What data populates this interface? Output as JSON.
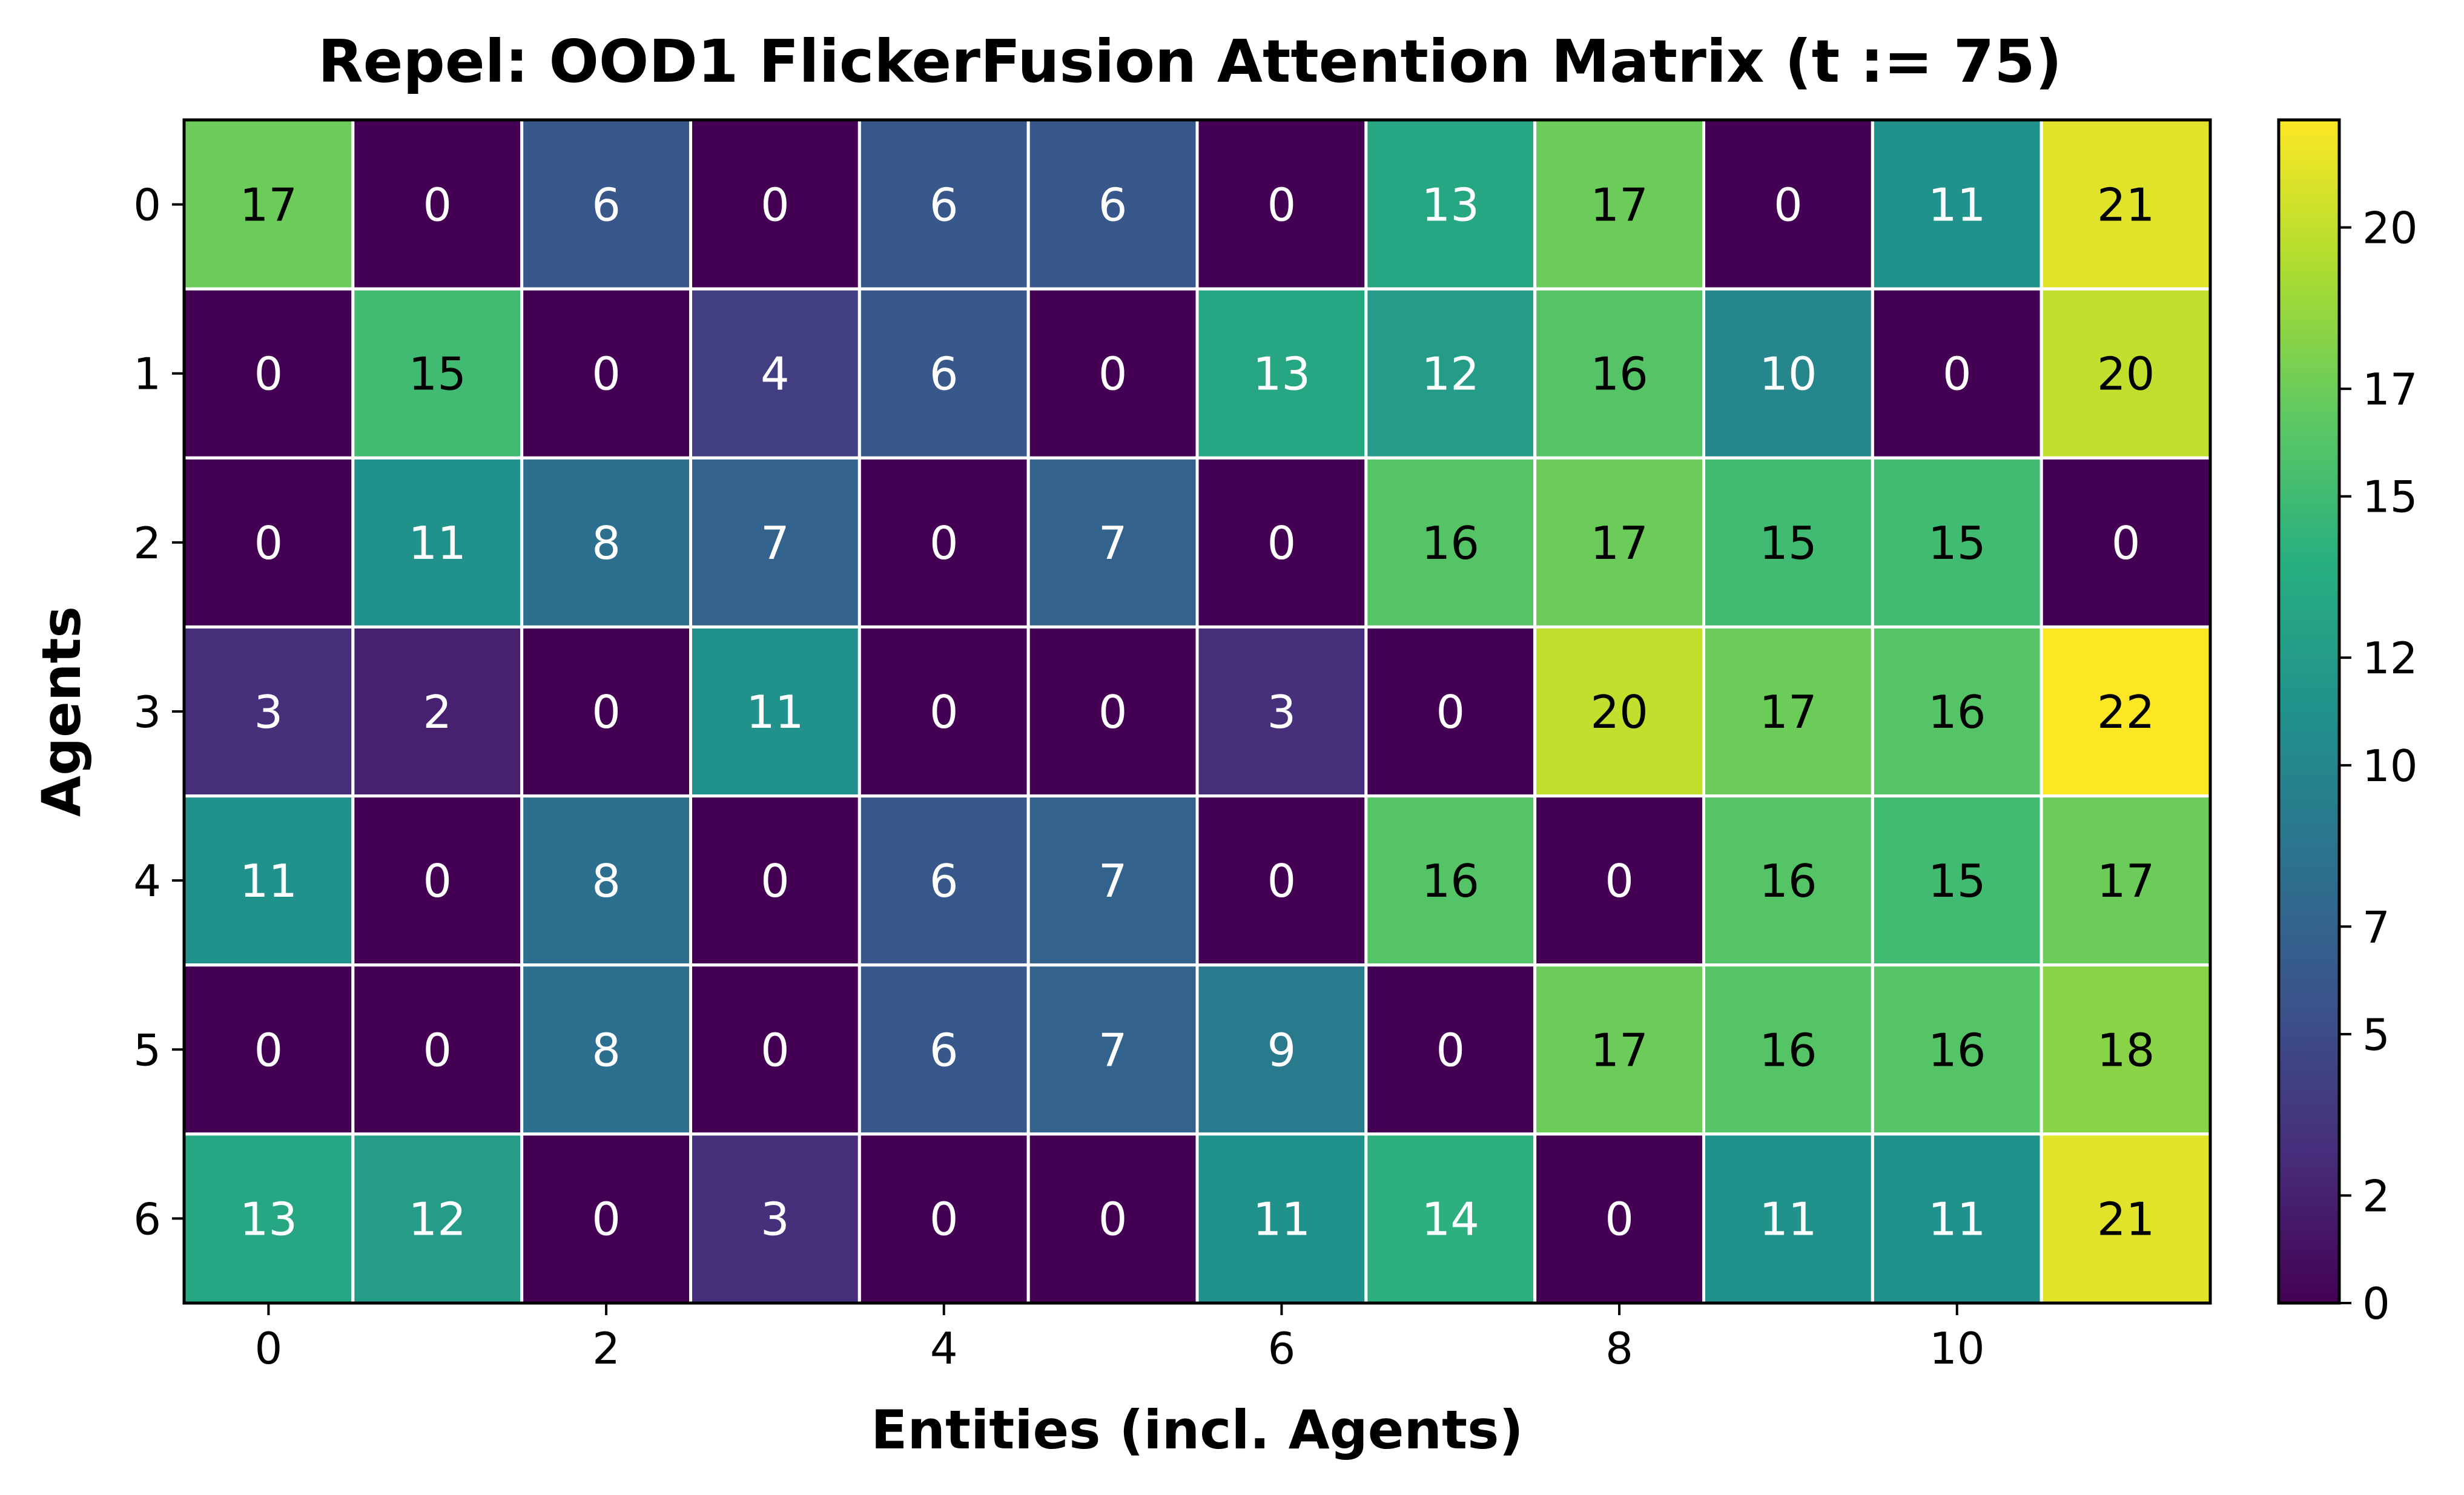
{
  "chart_data": {
    "type": "heatmap",
    "title": "Repel: OOD1 FlickerFusion Attention Matrix (t := 75)",
    "xlabel": "Entities (incl. Agents)",
    "ylabel": "Agents",
    "x_ticks": [
      "0",
      "2",
      "4",
      "6",
      "8",
      "10"
    ],
    "y_ticks": [
      "0",
      "1",
      "2",
      "3",
      "4",
      "5",
      "6"
    ],
    "colorbar_ticks": [
      "0",
      "2",
      "5",
      "7",
      "10",
      "12",
      "15",
      "17",
      "20"
    ],
    "colorbar_range": [
      0,
      22
    ],
    "colormap": "viridis",
    "values": [
      [
        17,
        0,
        6,
        0,
        6,
        6,
        0,
        13,
        17,
        0,
        11,
        21
      ],
      [
        0,
        15,
        0,
        4,
        6,
        0,
        13,
        12,
        16,
        10,
        0,
        20
      ],
      [
        0,
        11,
        8,
        7,
        0,
        7,
        0,
        16,
        17,
        15,
        15,
        0
      ],
      [
        3,
        2,
        0,
        11,
        0,
        0,
        3,
        0,
        20,
        17,
        16,
        22
      ],
      [
        11,
        0,
        8,
        0,
        6,
        7,
        0,
        16,
        0,
        16,
        15,
        17
      ],
      [
        0,
        0,
        8,
        0,
        6,
        7,
        9,
        0,
        17,
        16,
        16,
        18
      ],
      [
        13,
        12,
        0,
        3,
        0,
        0,
        11,
        14,
        0,
        11,
        11,
        21
      ]
    ],
    "grid": true,
    "legend": "colorbar-right"
  }
}
